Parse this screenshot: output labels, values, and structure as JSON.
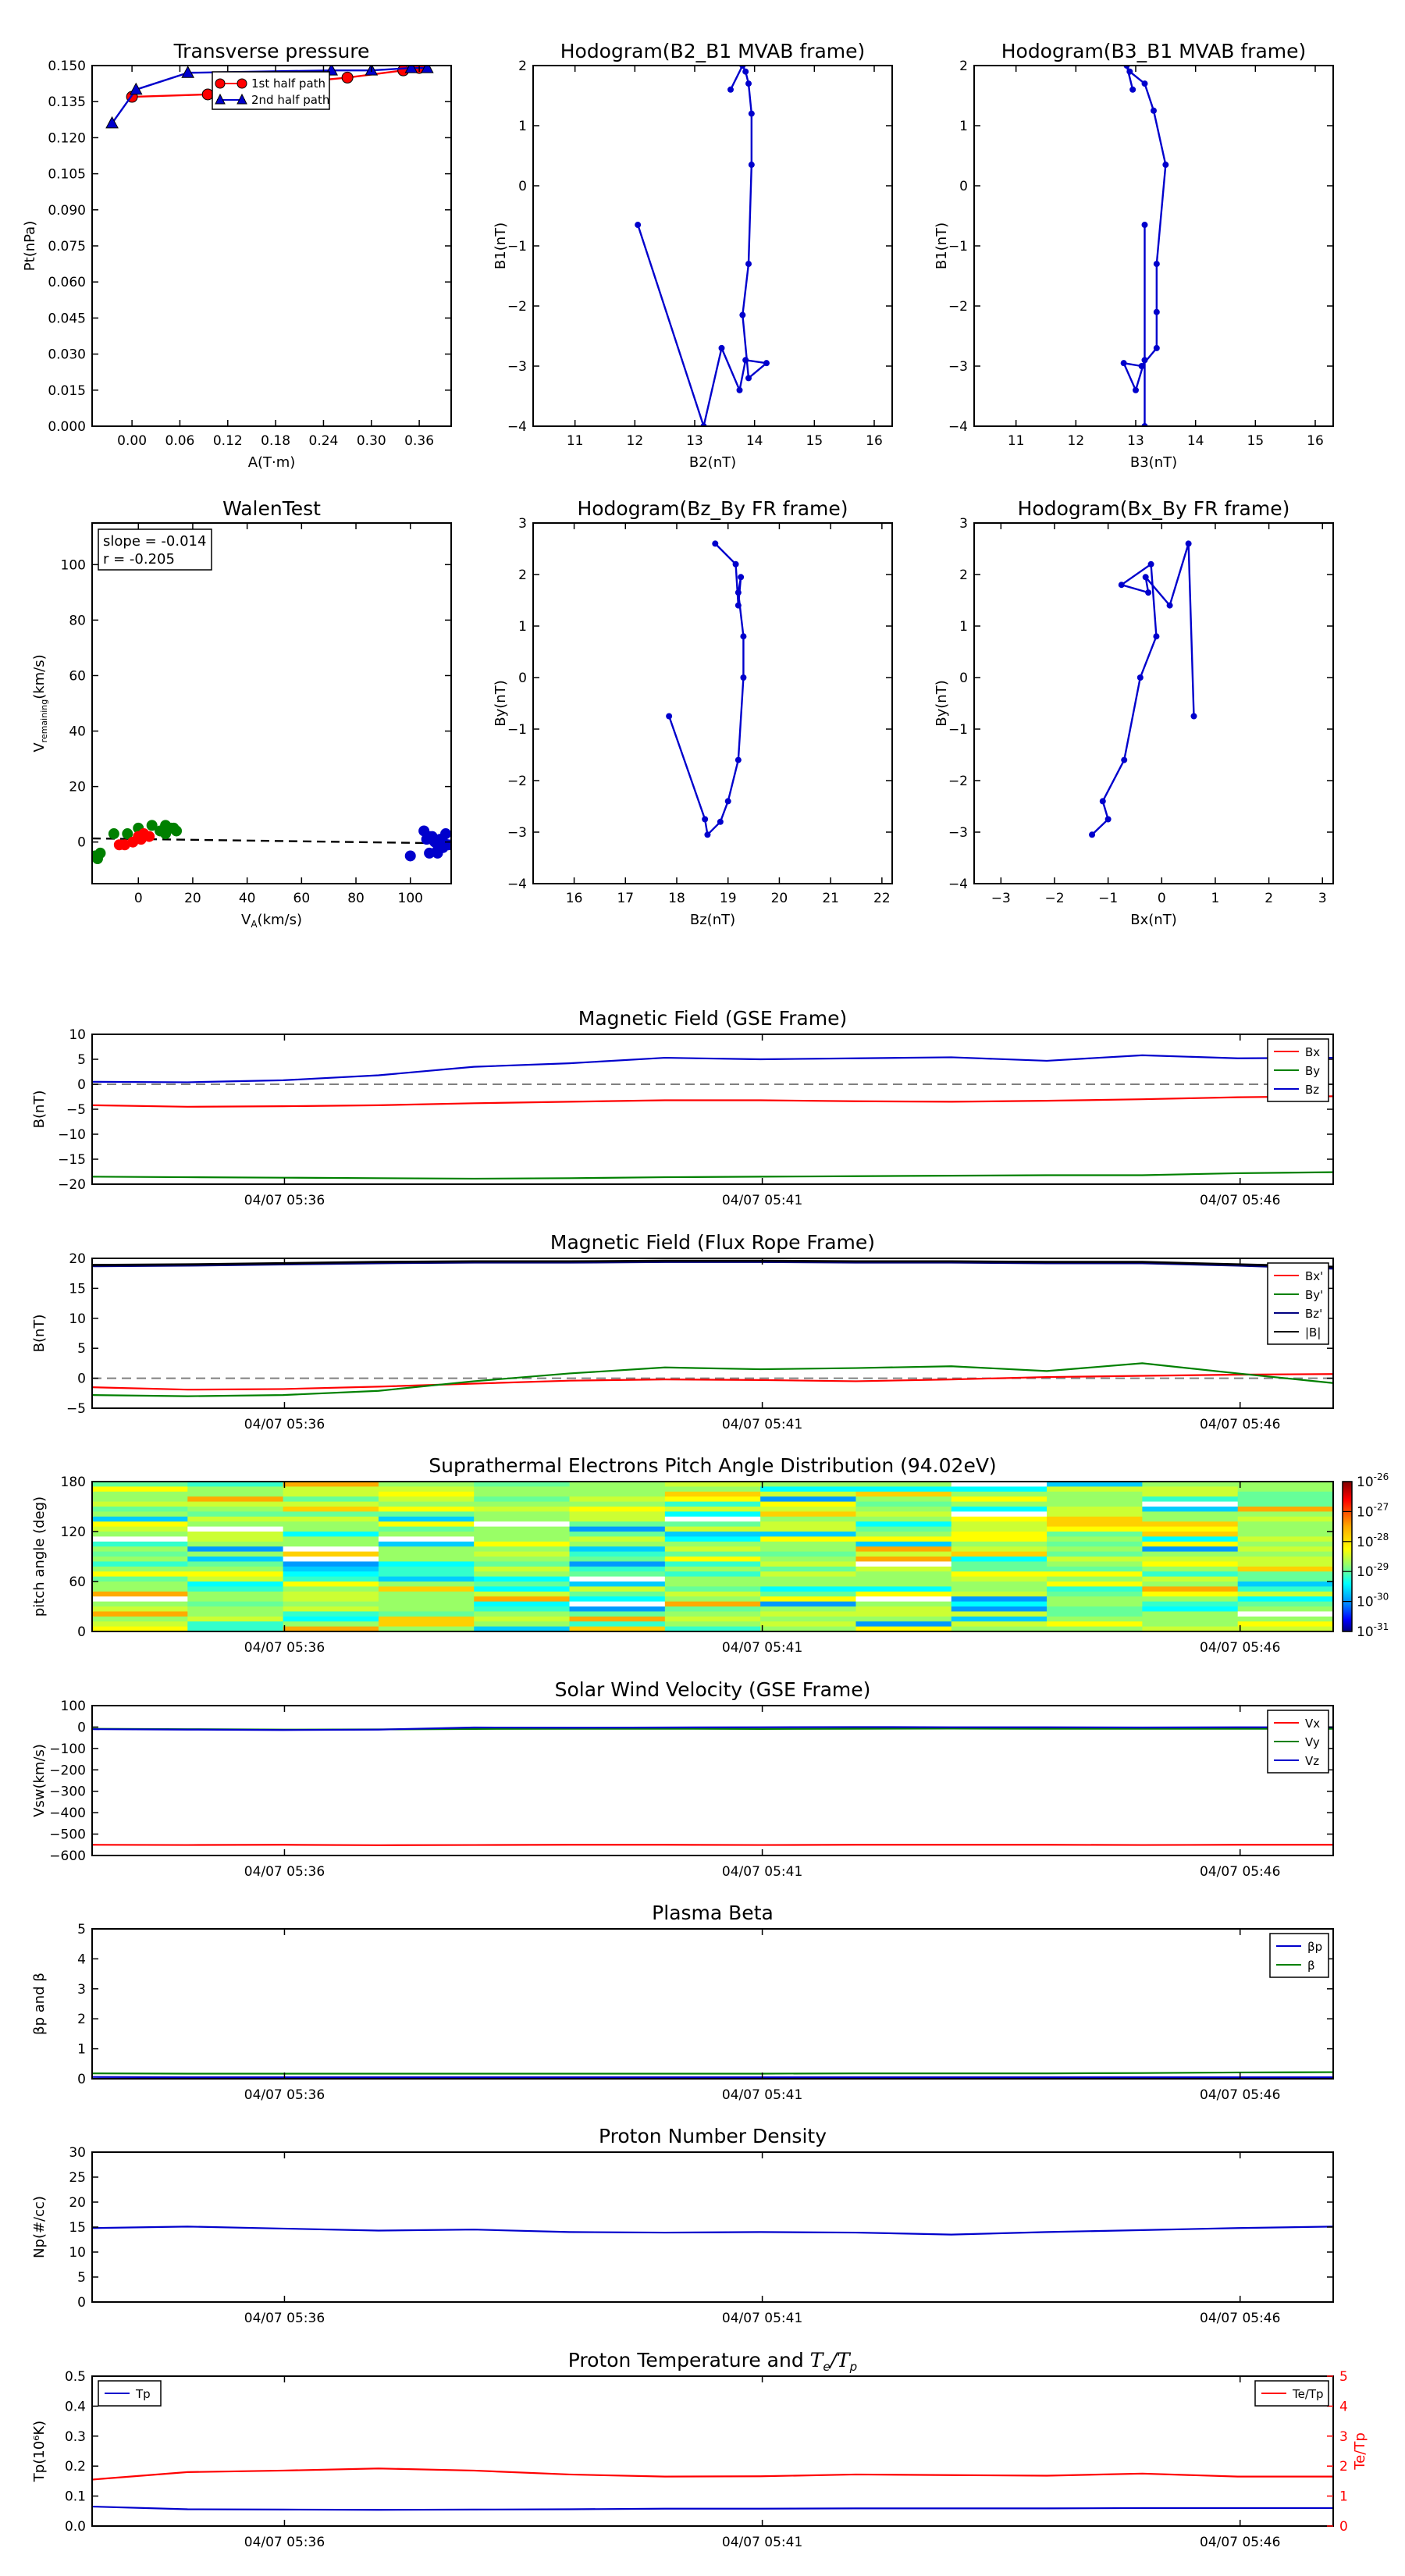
{
  "chart_data": [
    {
      "id": "tp",
      "type": "line",
      "title": "Transverse pressure",
      "xlabel": "A(T·m)",
      "ylabel": "Pt(nPa)",
      "xlim": [
        -0.05,
        0.4
      ],
      "ylim": [
        0.0,
        0.15
      ],
      "xticks": [
        0.0,
        0.06,
        0.12,
        0.18,
        0.24,
        0.3,
        0.36
      ],
      "xtick_labels": [
        "0.00",
        "0.06",
        "0.12",
        "0.18",
        "0.24",
        "0.30",
        "0.36"
      ],
      "yticks": [
        0.0,
        0.015,
        0.03,
        0.045,
        0.06,
        0.075,
        0.09,
        0.105,
        0.12,
        0.135,
        0.15
      ],
      "ytick_labels": [
        "0.000",
        "0.015",
        "0.030",
        "0.045",
        "0.060",
        "0.075",
        "0.090",
        "0.105",
        "0.120",
        "0.135",
        "0.150"
      ],
      "legend": "top-center",
      "series": [
        {
          "name": "1st half path",
          "color": "#ff0000",
          "marker": "circle",
          "x": [
            0.0,
            0.095,
            0.14,
            0.27,
            0.34,
            0.36
          ],
          "y": [
            0.137,
            0.138,
            0.141,
            0.145,
            0.148,
            0.149
          ]
        },
        {
          "name": "2nd half path",
          "color": "#0000cc",
          "marker": "triangle",
          "x": [
            -0.025,
            0.005,
            0.07,
            0.25,
            0.3,
            0.35,
            0.37
          ],
          "y": [
            0.126,
            0.14,
            0.147,
            0.148,
            0.148,
            0.149,
            0.149
          ]
        }
      ]
    },
    {
      "id": "h1",
      "type": "line",
      "title": "Hodogram(B2_B1 MVAB frame)",
      "xlabel": "B2(nT)",
      "ylabel": "B1(nT)",
      "xlim": [
        10.3,
        16.3
      ],
      "ylim": [
        -4,
        2
      ],
      "xticks": [
        11,
        12,
        13,
        14,
        15,
        16
      ],
      "yticks": [
        -4,
        -3,
        -2,
        -1,
        0,
        1,
        2
      ],
      "series": [
        {
          "color": "#0000cc",
          "marker": "dot",
          "x": [
            12.05,
            13.15,
            13.45,
            13.75,
            13.85,
            14.2,
            13.9,
            13.8,
            13.9,
            13.95,
            13.95,
            13.9,
            13.85,
            13.8,
            13.6
          ],
          "y": [
            -0.65,
            -4.0,
            -2.7,
            -3.4,
            -2.9,
            -2.95,
            -3.2,
            -2.15,
            -1.3,
            0.35,
            1.2,
            1.7,
            1.9,
            2.0,
            1.6
          ]
        }
      ]
    },
    {
      "id": "h2",
      "type": "line",
      "title": "Hodogram(B3_B1 MVAB frame)",
      "xlabel": "B3(nT)",
      "ylabel": "B1(nT)",
      "xlim": [
        10.3,
        16.3
      ],
      "ylim": [
        -4,
        2
      ],
      "xticks": [
        11,
        12,
        13,
        14,
        15,
        16
      ],
      "yticks": [
        -4,
        -3,
        -2,
        -1,
        0,
        1,
        2
      ],
      "series": [
        {
          "color": "#0000cc",
          "marker": "dot",
          "x": [
            13.15,
            13.15,
            13.15,
            13.0,
            12.8,
            13.1,
            13.35,
            13.35,
            13.35,
            13.5,
            13.3,
            13.15,
            12.9,
            12.85,
            12.95
          ],
          "y": [
            -0.65,
            -4.0,
            -2.9,
            -3.4,
            -2.95,
            -3.0,
            -2.7,
            -2.1,
            -1.3,
            0.35,
            1.25,
            1.7,
            1.9,
            2.0,
            1.6
          ]
        }
      ]
    },
    {
      "id": "walen",
      "type": "scatter",
      "title": "WalenTest",
      "xlabel": "V_A(km/s)",
      "ylabel": "V_remaining(km/s)",
      "xlim": [
        -17,
        115
      ],
      "ylim": [
        -15,
        115
      ],
      "xticks": [
        0,
        20,
        40,
        60,
        80,
        100
      ],
      "yticks": [
        0,
        20,
        40,
        60,
        80,
        100
      ],
      "annotation": [
        "slope = -0.014",
        "r = -0.205"
      ],
      "fit": {
        "x": [
          -17,
          115
        ],
        "y": [
          1.3,
          -0.5
        ]
      },
      "series": [
        {
          "color": "#008000",
          "x": [
            -16,
            -15,
            -14,
            -9,
            -4,
            0,
            5,
            8,
            10,
            12,
            14,
            10,
            13
          ],
          "y": [
            -5,
            -6,
            -4,
            3,
            3,
            5,
            6,
            4,
            3,
            5,
            4,
            6,
            5
          ]
        },
        {
          "color": "#ff0000",
          "x": [
            -7,
            -5,
            -2,
            0,
            2,
            4,
            1
          ],
          "y": [
            -1,
            -1,
            0,
            2,
            3,
            2,
            1
          ]
        },
        {
          "color": "#0000cc",
          "x": [
            100,
            105,
            106,
            107,
            108,
            109,
            110,
            111,
            112,
            113,
            114,
            107,
            110,
            112
          ],
          "y": [
            -5,
            4,
            1,
            -4,
            2,
            0,
            -3,
            1,
            -2,
            3,
            -1,
            2,
            -4,
            0
          ]
        }
      ]
    },
    {
      "id": "h3",
      "type": "line",
      "title": "Hodogram(Bz_By FR frame)",
      "xlabel": "Bz(nT)",
      "ylabel": "By(nT)",
      "xlim": [
        15.2,
        22.2
      ],
      "ylim": [
        -4,
        3
      ],
      "xticks": [
        16,
        17,
        18,
        19,
        20,
        21,
        22
      ],
      "yticks": [
        -4,
        -3,
        -2,
        -1,
        0,
        1,
        2,
        3
      ],
      "series": [
        {
          "color": "#0000cc",
          "marker": "dot",
          "x": [
            17.85,
            18.55,
            18.6,
            18.85,
            19.0,
            19.2,
            19.3,
            19.3,
            19.2,
            19.25,
            19.2,
            19.15,
            18.75
          ],
          "y": [
            -0.75,
            -2.75,
            -3.05,
            -2.8,
            -2.4,
            -1.6,
            0.0,
            0.8,
            1.65,
            1.95,
            1.4,
            2.2,
            2.6
          ]
        }
      ]
    },
    {
      "id": "h4",
      "type": "line",
      "title": "Hodogram(Bx_By FR frame)",
      "xlabel": "Bx(nT)",
      "ylabel": "By(nT)",
      "xlim": [
        -3.5,
        3.2
      ],
      "ylim": [
        -4,
        3
      ],
      "xticks": [
        -3,
        -2,
        -1,
        0,
        1,
        2,
        3
      ],
      "yticks": [
        -4,
        -3,
        -2,
        -1,
        0,
        1,
        2,
        3
      ],
      "series": [
        {
          "color": "#0000cc",
          "marker": "dot",
          "x": [
            -1.3,
            -1.0,
            -1.1,
            -0.7,
            -0.4,
            -0.1,
            -0.2,
            -0.75,
            -0.25,
            -0.3,
            0.15,
            0.5,
            0.6
          ],
          "y": [
            -3.05,
            -2.75,
            -2.4,
            -1.6,
            0.0,
            0.8,
            2.2,
            1.8,
            1.65,
            1.95,
            1.4,
            2.6,
            -0.75
          ]
        }
      ]
    }
  ],
  "time_chart_data": [
    {
      "id": "bgse",
      "type": "line",
      "title": "Magnetic Field (GSE Frame)",
      "ylabel": "B(nT)",
      "ylim": [
        -20,
        10
      ],
      "yticks": [
        -20,
        -15,
        -10,
        -5,
        0,
        5,
        10
      ],
      "xticks": [
        "04/07 05:36",
        "04/07 05:41",
        "04/07 05:46"
      ],
      "zero_line": true,
      "legend": "top-right",
      "series": [
        {
          "name": "Bx",
          "color": "#ff0000",
          "values": [
            -4.2,
            -4.5,
            -4.4,
            -4.2,
            -3.8,
            -3.5,
            -3.2,
            -3.2,
            -3.4,
            -3.5,
            -3.3,
            -3.0,
            -2.6,
            -2.4
          ]
        },
        {
          "name": "By",
          "color": "#008000",
          "values": [
            -18.5,
            -18.6,
            -18.7,
            -18.8,
            -18.9,
            -18.8,
            -18.6,
            -18.5,
            -18.4,
            -18.3,
            -18.2,
            -18.2,
            -17.8,
            -17.6
          ]
        },
        {
          "name": "Bz",
          "color": "#0000cc",
          "values": [
            0.5,
            0.4,
            0.8,
            1.8,
            3.5,
            4.2,
            5.3,
            5.0,
            5.2,
            5.4,
            4.7,
            5.8,
            5.2,
            5.3
          ]
        }
      ]
    },
    {
      "id": "bfr",
      "type": "line",
      "title": "Magnetic Field (Flux Rope Frame)",
      "ylabel": "B(nT)",
      "ylim": [
        -5,
        20
      ],
      "yticks": [
        -5,
        0,
        5,
        10,
        15,
        20
      ],
      "xticks": [
        "04/07 05:36",
        "04/07 05:41",
        "04/07 05:46"
      ],
      "zero_line": true,
      "legend": "top-right",
      "series": [
        {
          "name": "Bx'",
          "color": "#ff0000",
          "values": [
            -1.5,
            -1.9,
            -1.8,
            -1.4,
            -0.9,
            -0.4,
            -0.2,
            -0.3,
            -0.5,
            -0.2,
            0.2,
            0.4,
            0.6,
            0.7
          ]
        },
        {
          "name": "By'",
          "color": "#008000",
          "values": [
            -2.8,
            -3.0,
            -2.8,
            -2.1,
            -0.5,
            0.8,
            1.8,
            1.5,
            1.7,
            2.0,
            1.2,
            2.5,
            0.8,
            -0.8
          ]
        },
        {
          "name": "Bz'",
          "color": "#000080",
          "values": [
            18.7,
            18.8,
            19.0,
            19.2,
            19.3,
            19.3,
            19.4,
            19.4,
            19.3,
            19.3,
            19.2,
            19.2,
            18.8,
            18.3
          ]
        },
        {
          "name": "|B|",
          "color": "#000000",
          "values": [
            18.9,
            19.0,
            19.2,
            19.4,
            19.5,
            19.5,
            19.6,
            19.6,
            19.5,
            19.5,
            19.4,
            19.4,
            19.0,
            18.6
          ]
        }
      ]
    },
    {
      "id": "pad",
      "type": "heatmap",
      "title": "Suprathermal Electrons Pitch Angle Distribution (94.02eV)",
      "ylabel": "pitch angle (deg)",
      "ylim": [
        0,
        180
      ],
      "yticks": [
        0,
        60,
        120,
        180
      ],
      "xticks": [
        "04/07 05:36",
        "04/07 05:41",
        "04/07 05:46"
      ],
      "colorbar_labels": [
        "10-26",
        "10-27",
        "10-28",
        "10-29",
        "10-30",
        "10-31"
      ],
      "colorbar_exponents": [
        "-26",
        "-27",
        "-28",
        "-29",
        "-30",
        "-31"
      ]
    },
    {
      "id": "vsw",
      "type": "line",
      "title": "Solar Wind Velocity (GSE Frame)",
      "ylabel": "Vsw(km/s)",
      "ylim": [
        -600,
        100
      ],
      "yticks": [
        -600,
        -500,
        -400,
        -300,
        -200,
        -100,
        0,
        100
      ],
      "ytick_labels": [
        "−600",
        "−500",
        "−400",
        "−300",
        "−200",
        "−100",
        "0",
        "100"
      ],
      "xticks": [
        "04/07 05:36",
        "04/07 05:41",
        "04/07 05:46"
      ],
      "legend": "top-right",
      "series": [
        {
          "name": "Vx",
          "color": "#ff0000",
          "values": [
            -550,
            -551,
            -550,
            -552,
            -551,
            -550,
            -550,
            -551,
            -550,
            -550,
            -550,
            -551,
            -550,
            -550
          ]
        },
        {
          "name": "Vy",
          "color": "#008000",
          "values": [
            -8,
            -10,
            -12,
            -11,
            -9,
            -8,
            -8,
            -9,
            -8,
            -7,
            -8,
            -8,
            -8,
            -8
          ]
        },
        {
          "name": "Vz",
          "color": "#0000cc",
          "values": [
            -10,
            -12,
            -14,
            -12,
            -2,
            -3,
            -2,
            -1,
            0,
            -1,
            -1,
            -2,
            -1,
            -1
          ]
        }
      ]
    },
    {
      "id": "beta",
      "type": "line",
      "title": "Plasma Beta",
      "ylabel": "βp and β",
      "ylim": [
        0,
        5
      ],
      "yticks": [
        0,
        1,
        2,
        3,
        4,
        5
      ],
      "xticks": [
        "04/07 05:36",
        "04/07 05:41",
        "04/07 05:46"
      ],
      "legend": "top-right",
      "series": [
        {
          "name": "βp",
          "color": "#0000cc",
          "values": [
            0.06,
            0.05,
            0.05,
            0.05,
            0.05,
            0.05,
            0.05,
            0.05,
            0.05,
            0.05,
            0.05,
            0.05,
            0.05,
            0.05
          ]
        },
        {
          "name": "β",
          "color": "#008000",
          "values": [
            0.18,
            0.17,
            0.17,
            0.17,
            0.17,
            0.17,
            0.17,
            0.17,
            0.18,
            0.18,
            0.18,
            0.19,
            0.21,
            0.22
          ]
        }
      ]
    },
    {
      "id": "np",
      "type": "line",
      "title": "Proton Number Density",
      "ylabel": "Np(#/cc)",
      "ylim": [
        0,
        30
      ],
      "yticks": [
        0,
        5,
        10,
        15,
        20,
        25,
        30
      ],
      "xticks": [
        "04/07 05:36",
        "04/07 05:41",
        "04/07 05:46"
      ],
      "series": [
        {
          "color": "#0000cc",
          "values": [
            14.8,
            15.1,
            14.7,
            14.3,
            14.5,
            14.0,
            13.9,
            14.0,
            13.9,
            13.5,
            14.0,
            14.4,
            14.8,
            15.1
          ]
        }
      ]
    },
    {
      "id": "tpr",
      "type": "line",
      "title": "Proton Temperature and Te/Tp",
      "ylabel": "Tp(10⁶K)",
      "ylabel_right": "Te/Tp",
      "ylim": [
        0,
        0.5
      ],
      "yticks": [
        0,
        0.1,
        0.2,
        0.3,
        0.4,
        0.5
      ],
      "ytick_labels": [
        "0.0",
        "0.1",
        "0.2",
        "0.3",
        "0.4",
        "0.5"
      ],
      "ylim_right": [
        0,
        5
      ],
      "yticks_right": [
        0,
        1,
        2,
        3,
        4,
        5
      ],
      "xticks": [
        "04/07 05:36",
        "04/07 05:41",
        "04/07 05:46"
      ],
      "legend_left": "top-left",
      "legend_right": "top-right",
      "series": [
        {
          "name": "Tp",
          "color": "#0000cc",
          "axis": "left",
          "values": [
            0.065,
            0.056,
            0.055,
            0.054,
            0.055,
            0.056,
            0.058,
            0.058,
            0.059,
            0.059,
            0.059,
            0.06,
            0.06,
            0.06
          ]
        },
        {
          "name": "Te/Tp",
          "color": "#ff0000",
          "axis": "right",
          "values": [
            1.55,
            1.8,
            1.85,
            1.92,
            1.85,
            1.72,
            1.65,
            1.66,
            1.72,
            1.7,
            1.68,
            1.75,
            1.65,
            1.65
          ]
        }
      ]
    }
  ]
}
